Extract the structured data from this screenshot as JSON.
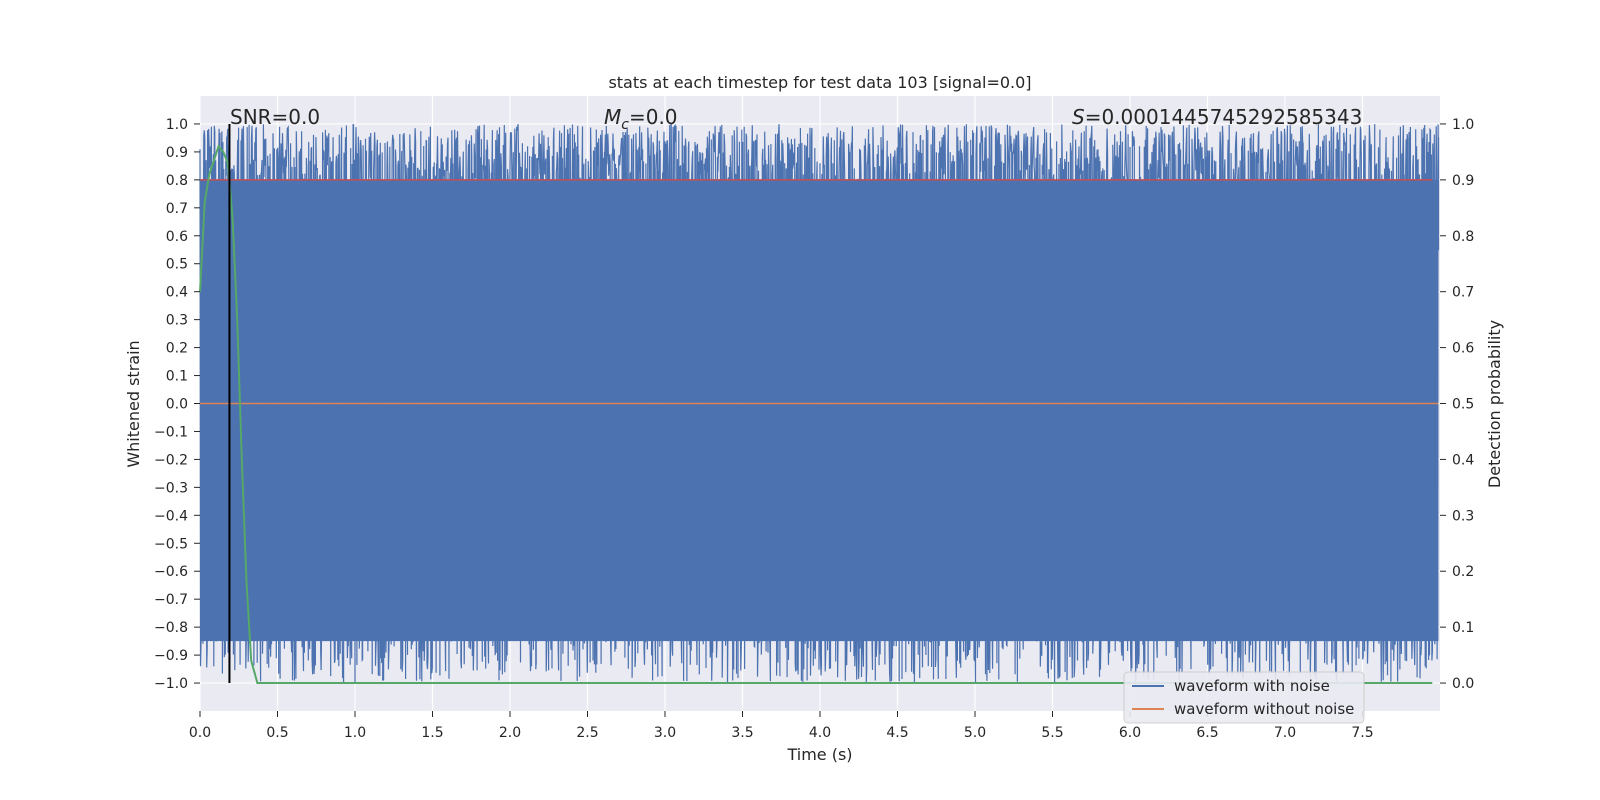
{
  "chart_data": {
    "type": "line",
    "title": "stats at each timestep for test data 103 [signal=0.0]",
    "xlabel": "Time (s)",
    "ylabel_left": "Whitened strain",
    "ylabel_right": "Detection probability",
    "xlim": [
      0.0,
      8.0
    ],
    "ylim_left": [
      -1.1,
      1.1
    ],
    "ylim_right": [
      -0.05,
      1.05
    ],
    "x_ticks": [
      "0.0",
      "0.5",
      "1.0",
      "1.5",
      "2.0",
      "2.5",
      "3.0",
      "3.5",
      "4.0",
      "4.5",
      "5.0",
      "5.5",
      "6.0",
      "6.5",
      "7.0",
      "7.5"
    ],
    "y_ticks_left": [
      "1.0",
      "0.9",
      "0.8",
      "0.7",
      "0.6",
      "0.5",
      "0.4",
      "0.3",
      "0.2",
      "0.1",
      "0.0",
      "−0.1",
      "−0.2",
      "−0.3",
      "−0.4",
      "−0.5",
      "−0.6",
      "−0.7",
      "−0.8",
      "−0.9",
      "−1.0"
    ],
    "y_ticks_right": [
      "1.0",
      "0.9",
      "0.8",
      "0.7",
      "0.6",
      "0.5",
      "0.4",
      "0.3",
      "0.2",
      "0.1",
      "0.0"
    ],
    "grid": true,
    "legend_position": "bottom-right",
    "annotations": {
      "snr": "SNR=0.0",
      "mc_symbol": "M",
      "mc_subscript": "c",
      "mc_value": "=0.0",
      "s_symbol": "S",
      "s_value": "=0.0001445745292585343"
    },
    "vertical_line_x": 0.19,
    "colors": {
      "noise": "#4c72b0",
      "clean": "#dd8452",
      "prob": "#55a868",
      "threshold": "#c44e52",
      "background": "#eaeaf2",
      "grid": "#ffffff",
      "marker": "#000000"
    },
    "series": [
      {
        "name": "waveform with noise",
        "axis": "left",
        "description_range": [
          -1.0,
          1.0
        ],
        "x_range": [
          0.0,
          8.0
        ]
      },
      {
        "name": "waveform without noise",
        "axis": "left",
        "x": [
          0.0,
          8.0
        ],
        "y": [
          0.0,
          0.0
        ]
      },
      {
        "axis": "right",
        "x": [
          0.0,
          0.03,
          0.06,
          0.09,
          0.12,
          0.15,
          0.18,
          0.21,
          0.24,
          0.27,
          0.3,
          0.33,
          0.37,
          0.4,
          1.0,
          2.0,
          3.0,
          4.0,
          5.0,
          6.0,
          7.0,
          7.95
        ],
        "y": [
          0.7,
          0.86,
          0.91,
          0.935,
          0.96,
          0.95,
          0.93,
          0.83,
          0.65,
          0.4,
          0.18,
          0.04,
          0.0,
          0.0,
          0.0,
          0.0,
          0.0,
          0.0,
          0.0,
          0.0,
          0.0,
          0.0
        ]
      },
      {
        "axis": "right",
        "x": [
          0.0,
          7.95
        ],
        "y": [
          0.9,
          0.9
        ]
      }
    ]
  }
}
